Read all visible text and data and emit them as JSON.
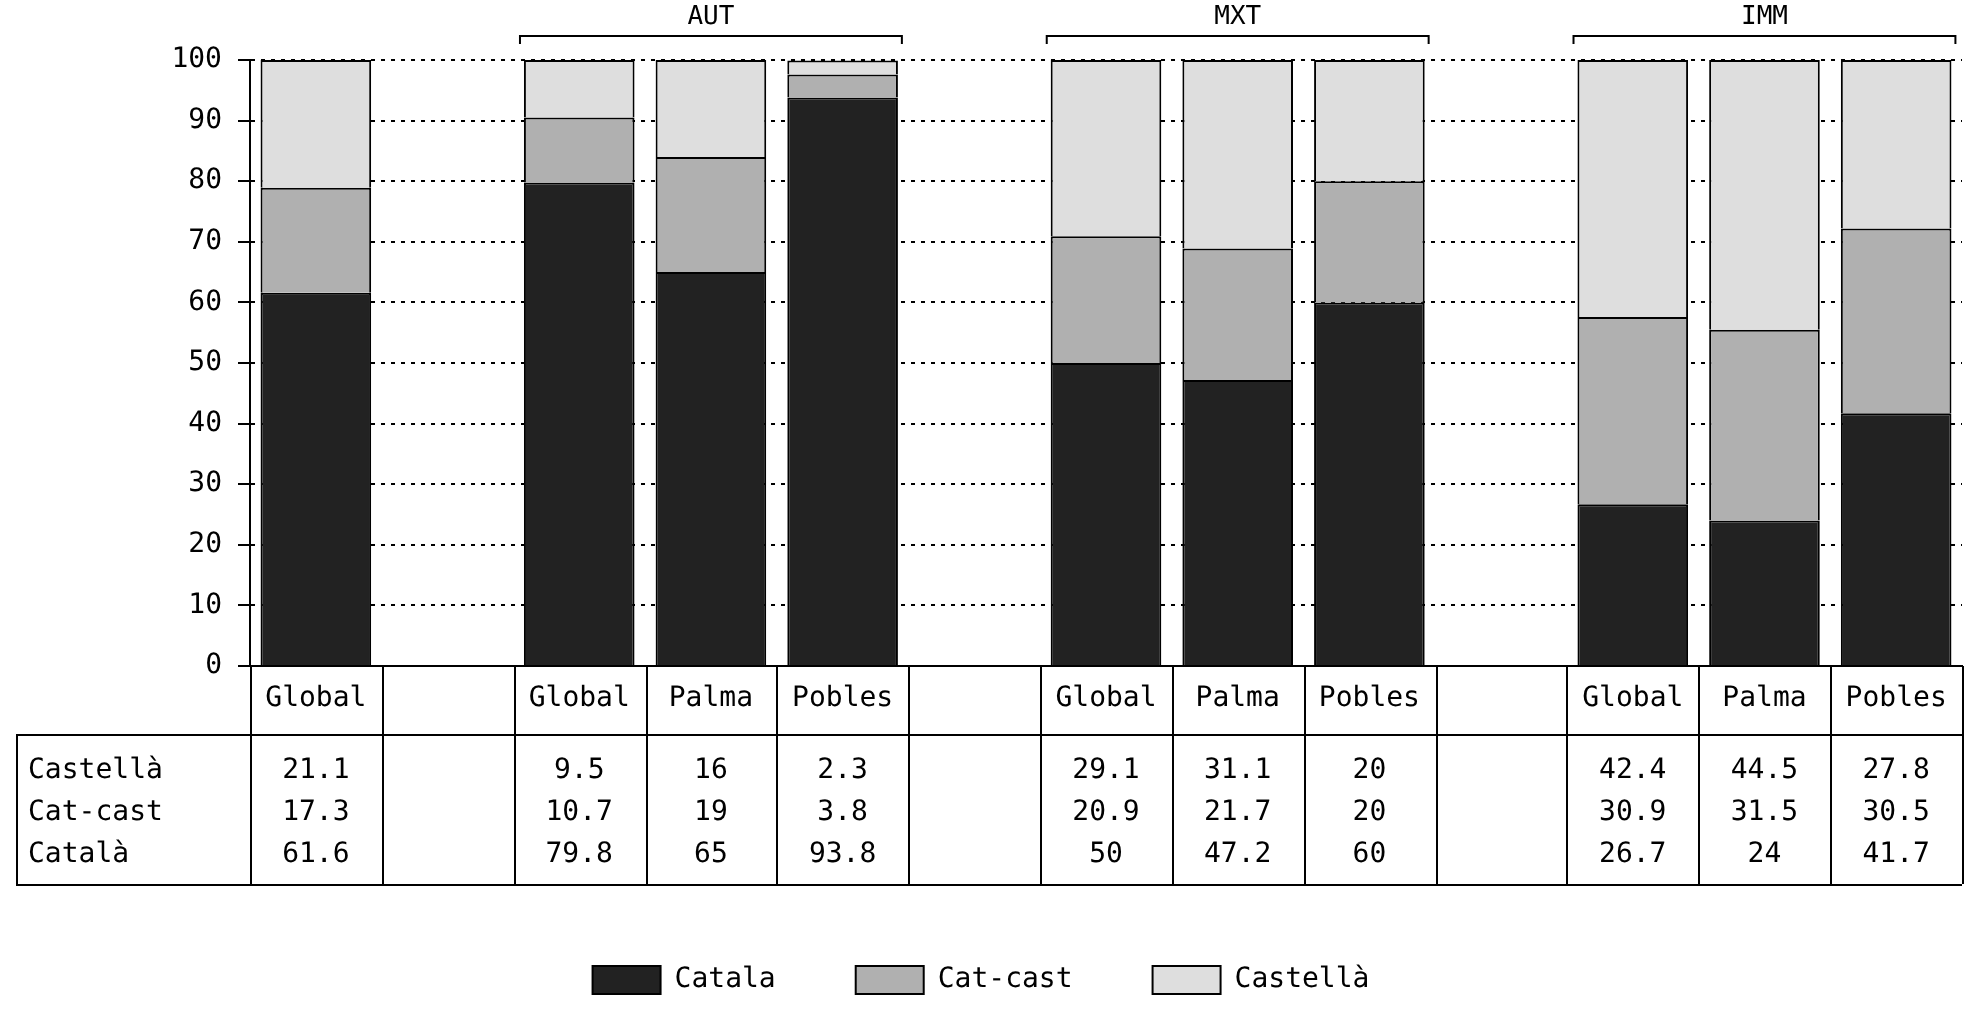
{
  "chart_data": {
    "type": "bar",
    "stacked": true,
    "categories": [
      "Global",
      null,
      "Global",
      "Palma",
      "Pobles",
      null,
      "Global",
      "Palma",
      "Pobles",
      null,
      "Global",
      "Palma",
      "Pobles"
    ],
    "series": [
      {
        "name": "Catala",
        "color": "#222222",
        "values": [
          61.6,
          null,
          79.8,
          65,
          93.8,
          null,
          50,
          47.2,
          60,
          null,
          26.7,
          24,
          41.7
        ]
      },
      {
        "name": "Cat-cast",
        "color": "#b0b0b0",
        "values": [
          17.3,
          null,
          10.7,
          19,
          3.8,
          null,
          20.9,
          21.7,
          20,
          null,
          30.9,
          31.5,
          30.5
        ]
      },
      {
        "name": "Castellà",
        "color": "#dedede",
        "values": [
          21.1,
          null,
          9.5,
          16,
          2.3,
          null,
          29.1,
          31.1,
          20,
          null,
          42.4,
          44.5,
          27.8
        ]
      }
    ],
    "ylim": [
      0,
      100
    ],
    "yticks": [
      0,
      10,
      20,
      30,
      40,
      50,
      60,
      70,
      80,
      90,
      100
    ],
    "grid": "y",
    "legend": "bottom",
    "data_labels": true,
    "annotations": [
      "AUT",
      "MXT",
      "IMM",
      "Castellà",
      "Cat-cast",
      "Català"
    ]
  }
}
